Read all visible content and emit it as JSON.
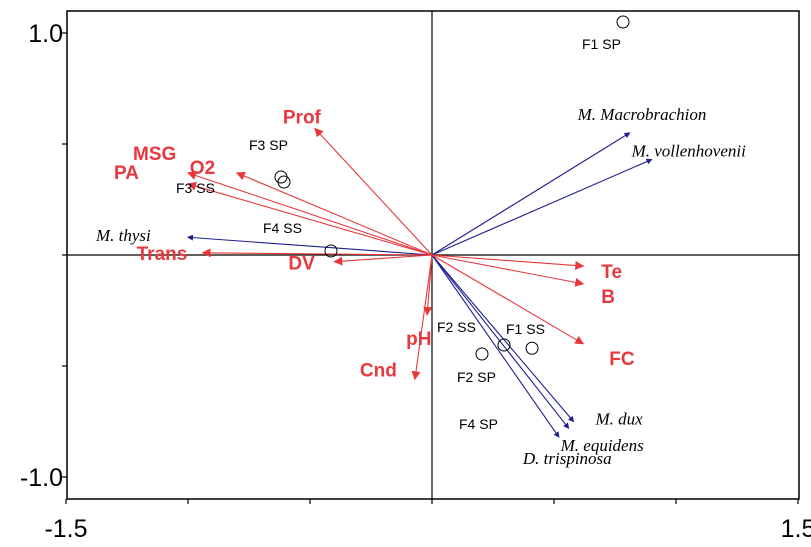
{
  "chart_data": {
    "type": "scatter",
    "subtype": "RDA triplot",
    "xlim": [
      -1.5,
      1.5
    ],
    "ylim": [
      -1.2,
      1.0
    ],
    "x_tick_labels": [
      "-1.5",
      "1.5"
    ],
    "y_tick_labels": [
      "1.0",
      "-1.0"
    ],
    "grid": false,
    "colors": {
      "environment": "#E8383D",
      "species": "#1F1F8F",
      "axes": "#000000"
    },
    "environment_vectors": [
      {
        "label": "Prof",
        "x": -0.48,
        "y": 0.57
      },
      {
        "label": "MSG",
        "x": -1.0,
        "y": 0.37
      },
      {
        "label": "PA",
        "x": -1.0,
        "y": 0.32
      },
      {
        "label": "O2",
        "x": -0.8,
        "y": 0.37
      },
      {
        "label": "Trans",
        "x": -0.94,
        "y": 0.01
      },
      {
        "label": "DV",
        "x": -0.4,
        "y": -0.03
      },
      {
        "label": "Te",
        "x": 0.62,
        "y": -0.05
      },
      {
        "label": "B",
        "x": 0.62,
        "y": -0.13
      },
      {
        "label": "FC",
        "x": 0.62,
        "y": -0.4
      },
      {
        "label": "pH",
        "x": -0.02,
        "y": -0.27
      },
      {
        "label": "Cnd",
        "x": -0.07,
        "y": -0.56
      }
    ],
    "species_vectors": [
      {
        "label": "M. Macrobrachion",
        "x": 0.81,
        "y": 0.55
      },
      {
        "label": "M. vollenhovenii",
        "x": 0.9,
        "y": 0.43
      },
      {
        "label": "M. thysi",
        "x": -1.0,
        "y": 0.08
      },
      {
        "label": "M. dux",
        "x": 0.58,
        "y": -0.75
      },
      {
        "label": "M. equidens",
        "x": 0.56,
        "y": -0.78
      },
      {
        "label": "D. trispinosa",
        "x": 0.52,
        "y": -0.82
      }
    ],
    "sites": [
      {
        "label": "F1 SP",
        "x": 0.78,
        "y": 0.96
      },
      {
        "label": "F3 SP",
        "x": -0.6,
        "y": 0.35
      },
      {
        "label": "F3 SS",
        "x": -0.61,
        "y": 0.33
      },
      {
        "label": "F4 SS",
        "x": -0.42,
        "y": 0.03
      },
      {
        "label": "F2 SS",
        "x": 0.41,
        "y": -0.42
      },
      {
        "label": "F1 SS",
        "x": 0.3,
        "y": -0.39
      },
      {
        "label": "F2 SP",
        "x": null,
        "y": null
      },
      {
        "label": "F4 SP",
        "x": null,
        "y": null
      }
    ]
  }
}
